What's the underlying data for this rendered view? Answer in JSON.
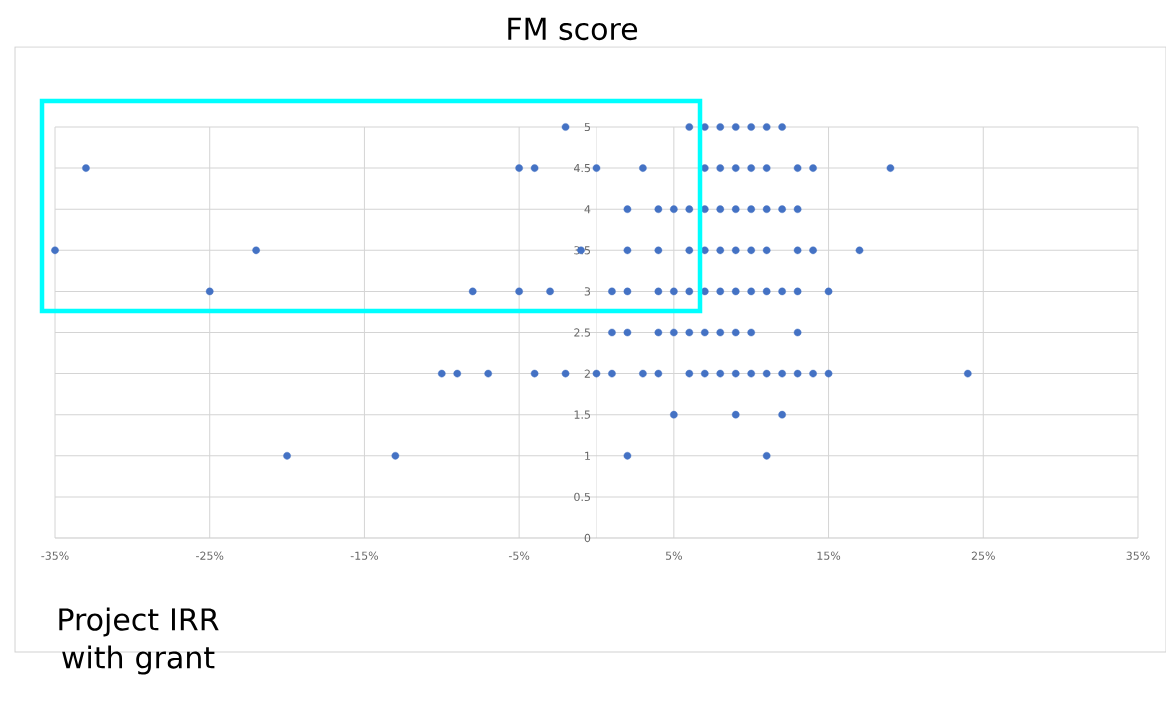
{
  "chart_data": {
    "type": "scatter",
    "ylabel": "FM score",
    "xlabel": "Project IRR with grant",
    "xlim": [
      -35,
      35
    ],
    "ylim": [
      0,
      5
    ],
    "xticks": [
      {
        "value": -35,
        "label": "-35%"
      },
      {
        "value": -25,
        "label": "-25%"
      },
      {
        "value": -15,
        "label": "-15%"
      },
      {
        "value": -5,
        "label": "-5%"
      },
      {
        "value": 5,
        "label": "5%"
      },
      {
        "value": 15,
        "label": "15%"
      },
      {
        "value": 25,
        "label": "25%"
      },
      {
        "value": 35,
        "label": "35%"
      }
    ],
    "yticks": [
      0,
      0.5,
      1,
      1.5,
      2,
      2.5,
      3,
      3.5,
      4,
      4.5,
      5
    ],
    "grid": true,
    "marker": "circle",
    "series": [
      {
        "color": "#4472c4",
        "x": [
          -2,
          6,
          7,
          8,
          9,
          10,
          11,
          12,
          -33,
          -5,
          -4,
          0,
          3,
          7,
          8,
          9,
          10,
          11,
          13,
          14,
          19,
          2,
          4,
          5,
          6,
          7,
          8,
          9,
          10,
          11,
          12,
          13,
          -35,
          -22,
          -1,
          2,
          4,
          6,
          7,
          8,
          9,
          10,
          11,
          13,
          14,
          17,
          -25,
          -8,
          -5,
          -3,
          1,
          2,
          4,
          5,
          6,
          7,
          8,
          9,
          10,
          11,
          12,
          13,
          15,
          1,
          2,
          4,
          5,
          6,
          7,
          8,
          9,
          10,
          13,
          -10,
          -9,
          -7,
          -4,
          -2,
          0,
          1,
          3,
          4,
          6,
          7,
          8,
          9,
          10,
          11,
          12,
          13,
          14,
          15,
          24,
          5,
          9,
          12,
          -20,
          -13,
          2,
          11
        ],
        "values": [
          5,
          5,
          5,
          5,
          5,
          5,
          5,
          5,
          4.5,
          4.5,
          4.5,
          4.5,
          4.5,
          4.5,
          4.5,
          4.5,
          4.5,
          4.5,
          4.5,
          4.5,
          4.5,
          4,
          4,
          4,
          4,
          4,
          4,
          4,
          4,
          4,
          4,
          4,
          3.5,
          3.5,
          3.5,
          3.5,
          3.5,
          3.5,
          3.5,
          3.5,
          3.5,
          3.5,
          3.5,
          3.5,
          3.5,
          3.5,
          3,
          3,
          3,
          3,
          3,
          3,
          3,
          3,
          3,
          3,
          3,
          3,
          3,
          3,
          3,
          3,
          3,
          2.5,
          2.5,
          2.5,
          2.5,
          2.5,
          2.5,
          2.5,
          2.5,
          2.5,
          2.5,
          2,
          2,
          2,
          2,
          2,
          2,
          2,
          2,
          2,
          2,
          2,
          2,
          2,
          2,
          2,
          2,
          2,
          2,
          2,
          2,
          1.5,
          1.5,
          1.5,
          1,
          1,
          1,
          1
        ]
      }
    ]
  }
}
